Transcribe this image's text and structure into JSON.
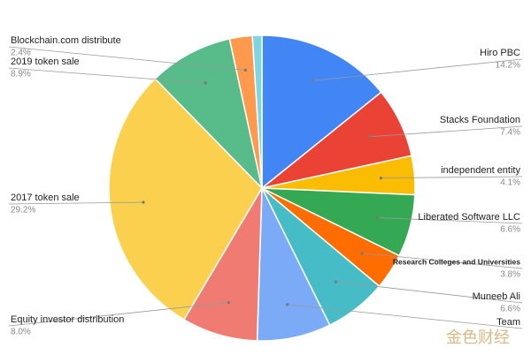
{
  "chart_data": {
    "type": "pie",
    "categories": [
      "Hiro PBC",
      "Stacks Foundation",
      "independent entity",
      "Liberated Software LLC",
      "Research Colleges and Universities",
      "Muneeb Ali",
      "Team",
      "Equity investor distribution",
      "2017 token sale",
      "2019  token sale",
      "Blockchain.com   distribute",
      null
    ],
    "values": [
      14.2,
      7.4,
      4.1,
      6.6,
      3.8,
      6.6,
      7.8,
      8.0,
      29.2,
      8.9,
      2.4,
      1.0
    ],
    "value_labels": [
      "14.2%",
      "7.4%",
      "4.1%",
      "6.6%",
      "3.8%",
      "6.6%",
      null,
      "8.0%",
      "29.2%",
      "8.9%",
      "2.4%",
      null
    ],
    "colors": [
      "#4285f4",
      "#ea4335",
      "#fbbc04",
      "#34a853",
      "#ff6d01",
      "#46bdc6",
      "#7baaf7",
      "#f07b72",
      "#fcd04f",
      "#57bb8a",
      "#ff994d",
      "#7ed6e0"
    ],
    "watermark": "金色财经"
  }
}
